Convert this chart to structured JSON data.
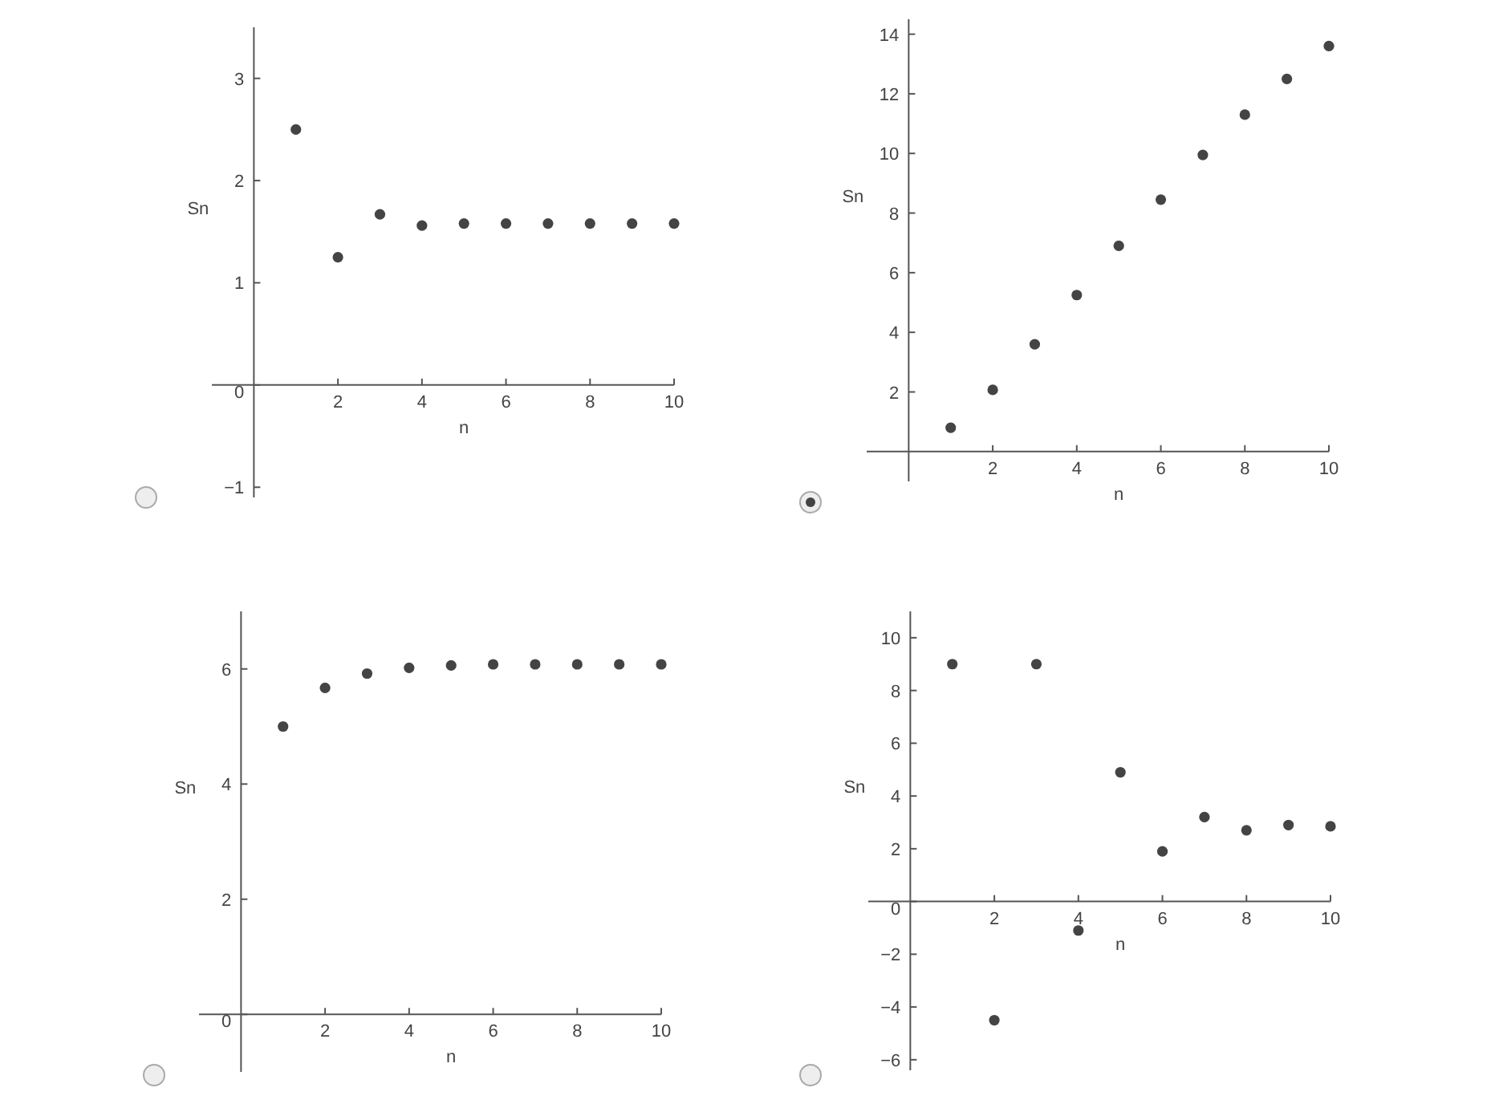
{
  "chart_data": [
    {
      "type": "scatter",
      "xlabel": "n",
      "ylabel": "Sn",
      "x": [
        1,
        2,
        3,
        4,
        5,
        6,
        7,
        8,
        9,
        10
      ],
      "marker": "circle",
      "grid": false,
      "xlim": [
        -1,
        10
      ],
      "ylim": [
        -1.1,
        3.5
      ],
      "xticks": [
        2,
        4,
        6,
        8,
        10
      ],
      "yticks": [
        -1,
        0,
        1,
        2,
        3
      ],
      "series": [
        {
          "color": "#444444",
          "values": [
            2.5,
            1.25,
            1.67,
            1.56,
            1.58,
            1.58,
            1.58,
            1.58,
            1.58,
            1.58
          ]
        }
      ]
    },
    {
      "type": "scatter",
      "xlabel": "n",
      "ylabel": "Sn",
      "x": [
        1,
        2,
        3,
        4,
        5,
        6,
        7,
        8,
        9,
        10
      ],
      "marker": "circle",
      "grid": false,
      "xlim": [
        -1,
        10
      ],
      "ylim": [
        -1,
        14.5
      ],
      "xticks": [
        2,
        4,
        6,
        8,
        10
      ],
      "yticks": [
        2,
        4,
        6,
        8,
        10,
        12,
        14
      ],
      "series": [
        {
          "color": "#444444",
          "values": [
            0.8,
            2.07,
            3.6,
            5.25,
            6.9,
            8.45,
            9.95,
            11.3,
            12.5,
            13.6
          ]
        }
      ]
    },
    {
      "type": "scatter",
      "xlabel": "n",
      "ylabel": "Sn",
      "x": [
        1,
        2,
        3,
        4,
        5,
        6,
        7,
        8,
        9,
        10
      ],
      "marker": "circle",
      "grid": false,
      "xlim": [
        -1,
        10
      ],
      "ylim": [
        -1,
        7
      ],
      "xticks": [
        2,
        4,
        6,
        8,
        10
      ],
      "yticks": [
        0,
        2,
        4,
        6
      ],
      "series": [
        {
          "color": "#444444",
          "values": [
            5,
            5.67,
            5.92,
            6.02,
            6.06,
            6.08,
            6.08,
            6.08,
            6.08,
            6.08
          ]
        }
      ]
    },
    {
      "type": "scatter",
      "xlabel": "n",
      "ylabel": "Sn",
      "x": [
        1,
        2,
        3,
        4,
        5,
        6,
        7,
        8,
        9,
        10
      ],
      "marker": "circle",
      "grid": false,
      "xlim": [
        -1,
        10
      ],
      "ylim": [
        -6.4,
        11
      ],
      "xticks": [
        2,
        4,
        6,
        8,
        10
      ],
      "yticks": [
        -6,
        -4,
        -2,
        0,
        2,
        4,
        6,
        8,
        10
      ],
      "series": [
        {
          "color": "#444444",
          "values": [
            9,
            -4.5,
            9,
            -1.1,
            4.9,
            1.9,
            3.2,
            2.7,
            2.9,
            2.85
          ]
        }
      ]
    }
  ]
}
